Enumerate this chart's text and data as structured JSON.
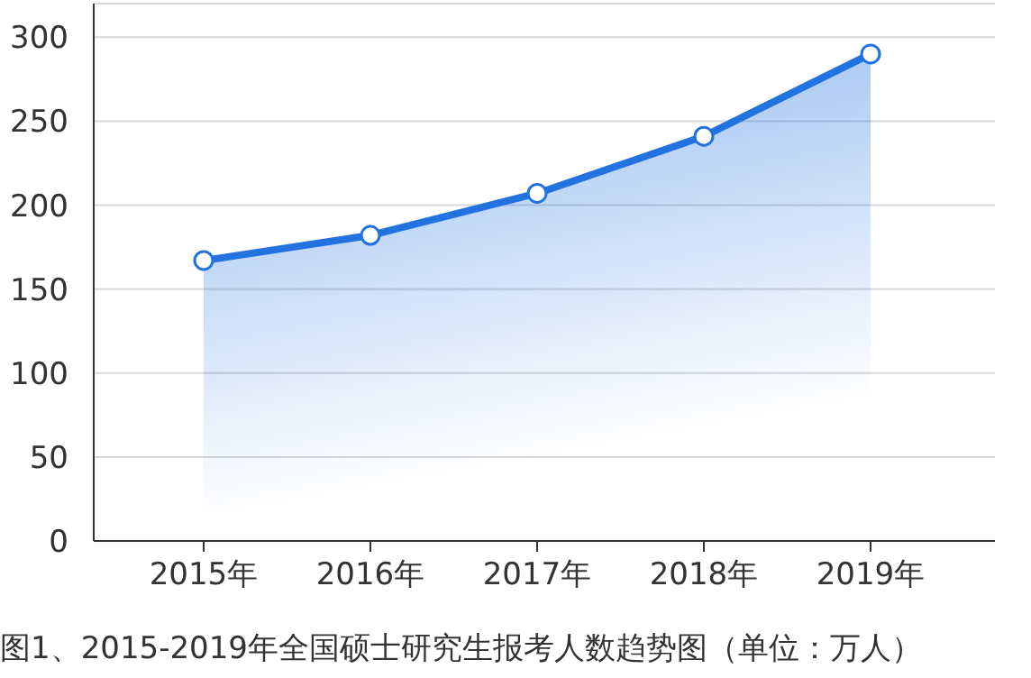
{
  "chart_data": {
    "type": "area",
    "categories": [
      "2015年",
      "2016年",
      "2017年",
      "2018年",
      "2019年"
    ],
    "series": [
      {
        "color": "#2272e0",
        "values": [
          167,
          182,
          207,
          241,
          290
        ]
      }
    ],
    "ylim": [
      0,
      320
    ],
    "yticks": [
      0,
      50,
      100,
      150,
      200,
      250,
      300
    ],
    "grid": "y",
    "marker": "circle",
    "legend": false,
    "annotations": [
      "图1、2015-2019年全国硕士研究生报考人数趋势图（单位：万人）"
    ]
  }
}
